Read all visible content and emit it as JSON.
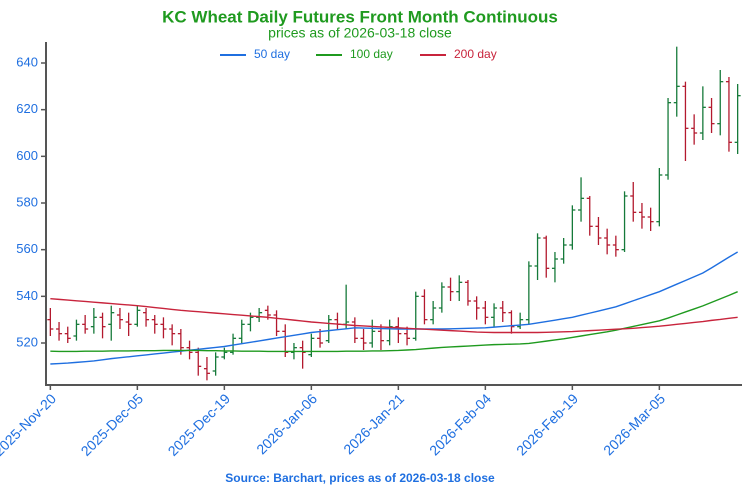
{
  "chart_data": {
    "type": "ohlc",
    "title": "KC Wheat Daily Futures Front Month Continuous",
    "subtitle": "prices as of 2026-03-18 close",
    "footnote": "Source: Barchart, prices as of 2026-03-18 close",
    "categories": [
      "2025-Nov-20",
      null,
      null,
      null,
      null,
      null,
      null,
      null,
      null,
      null,
      "2025-Dec-05",
      null,
      null,
      null,
      null,
      null,
      null,
      null,
      null,
      null,
      "2025-Dec-19",
      null,
      null,
      null,
      null,
      null,
      null,
      null,
      null,
      null,
      "2026-Jan-06",
      null,
      null,
      null,
      null,
      null,
      null,
      null,
      null,
      null,
      "2026-Jan-21",
      null,
      null,
      null,
      null,
      null,
      null,
      null,
      null,
      null,
      "2026-Feb-04",
      null,
      null,
      null,
      null,
      null,
      null,
      null,
      null,
      null,
      "2026-Feb-19",
      null,
      null,
      null,
      null,
      null,
      null,
      null,
      null,
      null,
      "2026-Mar-05",
      null,
      null,
      null,
      null,
      null,
      null,
      null,
      null,
      null
    ],
    "open": [
      530,
      526,
      524,
      523,
      528,
      527,
      531,
      528,
      532,
      529,
      528,
      533,
      530,
      528,
      526,
      524,
      518,
      516,
      509,
      508,
      514,
      516,
      522,
      528,
      531,
      534,
      532,
      525,
      516,
      518,
      515,
      522,
      521,
      530,
      528,
      529,
      522,
      520,
      525,
      521,
      527,
      524,
      522,
      540,
      530,
      535,
      544,
      542,
      546,
      538,
      535,
      531,
      535,
      533,
      527,
      530,
      553,
      565,
      552,
      556,
      562,
      577,
      582,
      570,
      565,
      562,
      560,
      583,
      576,
      574,
      572,
      592,
      623,
      630,
      612,
      610,
      621,
      614,
      632,
      606
    ],
    "high": [
      535,
      529,
      527,
      530,
      532,
      535,
      533,
      536,
      535,
      533,
      536,
      535,
      532,
      531,
      528,
      526,
      521,
      518,
      514,
      516,
      518,
      524,
      530,
      533,
      535,
      536,
      534,
      528,
      520,
      521,
      524,
      526,
      532,
      533,
      545,
      531,
      526,
      530,
      528,
      530,
      531,
      527,
      542,
      543,
      538,
      546,
      548,
      549,
      547,
      540,
      538,
      537,
      538,
      534,
      533,
      555,
      567,
      566,
      559,
      565,
      579,
      591,
      583,
      574,
      569,
      566,
      585,
      589,
      580,
      578,
      595,
      625,
      647,
      632,
      618,
      630,
      625,
      637,
      634,
      631
    ],
    "low": [
      523,
      521,
      520,
      521,
      524,
      524,
      522,
      521,
      526,
      523,
      527,
      527,
      524,
      522,
      519,
      515,
      513,
      506,
      504,
      506,
      513,
      515,
      520,
      525,
      529,
      530,
      523,
      514,
      513,
      509,
      514,
      518,
      520,
      526,
      526,
      520,
      517,
      518,
      517,
      519,
      520,
      519,
      521,
      528,
      528,
      533,
      538,
      538,
      536,
      530,
      528,
      527,
      529,
      524,
      526,
      528,
      547,
      548,
      546,
      554,
      560,
      572,
      566,
      562,
      558,
      557,
      559,
      572,
      569,
      568,
      570,
      590,
      617,
      598,
      605,
      607,
      610,
      609,
      602,
      601
    ],
    "close": [
      526,
      524,
      522,
      528,
      526,
      531,
      527,
      533,
      530,
      528,
      534,
      530,
      528,
      526,
      524,
      518,
      516,
      510,
      507,
      514,
      516,
      522,
      528,
      531,
      533,
      532,
      525,
      516,
      518,
      516,
      522,
      520,
      530,
      528,
      529,
      522,
      520,
      525,
      521,
      527,
      524,
      522,
      540,
      530,
      535,
      544,
      542,
      546,
      538,
      535,
      531,
      535,
      533,
      527,
      530,
      553,
      565,
      552,
      556,
      562,
      577,
      582,
      570,
      565,
      562,
      560,
      583,
      576,
      574,
      572,
      592,
      623,
      630,
      612,
      610,
      621,
      614,
      632,
      606,
      626
    ],
    "up_color": "#167a3a",
    "down_color": "#b3192e",
    "series": [
      {
        "name": "50 day",
        "color": "#1f6fe0",
        "values": [
          511,
          511.2,
          511.4,
          511.7,
          512,
          512.3,
          512.8,
          513.3,
          513.7,
          514.1,
          514.5,
          514.9,
          515.3,
          515.7,
          516.1,
          516.5,
          516.9,
          517.3,
          517.7,
          518.1,
          518.5,
          519.1,
          519.7,
          520.3,
          520.9,
          521.5,
          522.1,
          522.7,
          523.3,
          523.9,
          524.5,
          524.9,
          525.3,
          525.7,
          526.1,
          526.5,
          526.4,
          526.3,
          526.2,
          526.1,
          526,
          526,
          526,
          526,
          526,
          526,
          526.1,
          526.2,
          526.3,
          526.4,
          526.5,
          526.8,
          527.1,
          527.4,
          527.7,
          528,
          528.6,
          529.2,
          529.8,
          530.4,
          531,
          531.9,
          532.8,
          533.7,
          534.6,
          535.5,
          536.8,
          538.1,
          539.4,
          540.7,
          542,
          543.6,
          545.2,
          546.8,
          548.4,
          550,
          552.2,
          554.5,
          556.8,
          559
        ]
      },
      {
        "name": "100 day",
        "color": "#1f9a1f",
        "values": [
          516.5,
          516.4,
          516.4,
          516.4,
          516.5,
          516.5,
          516.5,
          516.6,
          516.6,
          516.6,
          516.7,
          516.7,
          516.7,
          516.8,
          516.8,
          516.8,
          516.8,
          516.8,
          516.7,
          516.7,
          516.6,
          516.6,
          516.5,
          516.5,
          516.5,
          516.4,
          516.4,
          516.4,
          516.4,
          516.4,
          516.4,
          516.4,
          516.4,
          516.4,
          516.5,
          516.5,
          516.5,
          516.6,
          516.6,
          516.7,
          516.8,
          517,
          517.2,
          517.5,
          517.8,
          518.1,
          518.3,
          518.5,
          518.7,
          518.9,
          519.1,
          519.3,
          519.4,
          519.5,
          519.6,
          519.8,
          520.3,
          520.8,
          521.3,
          521.8,
          522.4,
          523,
          523.6,
          524.2,
          524.8,
          525.5,
          526.3,
          527.1,
          527.9,
          528.7,
          529.5,
          530.7,
          532,
          533.3,
          534.6,
          535.9,
          537.4,
          538.9,
          540.4,
          542
        ]
      },
      {
        "name": "200 day",
        "color": "#c8243c",
        "values": [
          539,
          538.7,
          538.4,
          538.1,
          537.8,
          537.5,
          537.2,
          536.9,
          536.6,
          536.3,
          536,
          535.6,
          535.2,
          534.8,
          534.4,
          534,
          533.7,
          533.4,
          533.1,
          532.8,
          532.5,
          532.2,
          531.9,
          531.6,
          531.3,
          531,
          530.6,
          530.2,
          529.8,
          529.4,
          529,
          528.7,
          528.4,
          528.1,
          527.8,
          527.5,
          527.3,
          527.1,
          526.9,
          526.7,
          526.5,
          526.3,
          526.1,
          525.9,
          525.7,
          525.5,
          525.3,
          525.1,
          524.9,
          524.7,
          524.6,
          524.5,
          524.5,
          524.5,
          524.5,
          524.5,
          524.5,
          524.6,
          524.7,
          524.8,
          524.9,
          525.1,
          525.3,
          525.5,
          525.7,
          525.9,
          526.1,
          526.3,
          526.6,
          526.9,
          527.2,
          527.6,
          528,
          528.4,
          528.8,
          529.2,
          529.7,
          530.1,
          530.6,
          531
        ]
      }
    ],
    "ylim": [
      502,
      649
    ],
    "yticks": [
      520,
      540,
      560,
      580,
      600,
      620,
      640
    ],
    "legend": "top"
  }
}
